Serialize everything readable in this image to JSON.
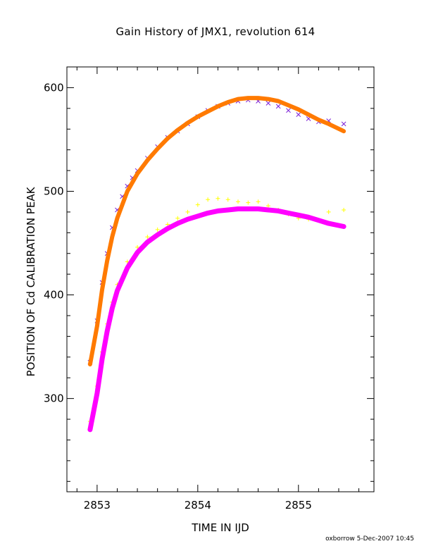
{
  "chart_data": {
    "type": "scatter",
    "title": "Gain History of JMX1, revolution 614",
    "xlabel": "TIME IN IJD",
    "ylabel": "POSITION OF Cd CALIBRATION PEAK",
    "xlim": [
      2852.7,
      2855.75
    ],
    "ylim": [
      210,
      620
    ],
    "xticks": [
      2853,
      2854,
      2855
    ],
    "yticks": [
      300,
      400,
      500,
      600
    ],
    "grid": false,
    "colors": {
      "upper_points": "#7b1fd6",
      "upper_fit": "#ff7a00",
      "lower_points": "#ffff00",
      "lower_fit": "#ff00ff"
    },
    "series": [
      {
        "marker": "x",
        "x": [
          2852.93,
          2853.0,
          2853.05,
          2853.1,
          2853.15,
          2853.2,
          2853.25,
          2853.3,
          2853.35,
          2853.4,
          2853.5,
          2853.6,
          2853.7,
          2853.8,
          2853.9,
          2854.0,
          2854.1,
          2854.2,
          2854.3,
          2854.4,
          2854.5,
          2854.6,
          2854.7,
          2854.8,
          2854.9,
          2855.0,
          2855.1,
          2855.2,
          2855.3,
          2855.45
        ],
        "y": [
          335,
          375,
          412,
          440,
          465,
          482,
          495,
          505,
          513,
          520,
          532,
          543,
          552,
          558,
          565,
          572,
          578,
          582,
          585,
          587,
          588,
          587,
          585,
          582,
          578,
          574,
          570,
          567,
          568,
          565
        ]
      },
      {
        "marker": "line",
        "x": [
          2852.93,
          2853.0,
          2853.05,
          2853.1,
          2853.15,
          2853.2,
          2853.3,
          2853.4,
          2853.5,
          2853.6,
          2853.7,
          2853.8,
          2853.9,
          2854.0,
          2854.1,
          2854.2,
          2854.3,
          2854.4,
          2854.5,
          2854.6,
          2854.7,
          2854.8,
          2854.9,
          2855.0,
          2855.1,
          2855.2,
          2855.3,
          2855.45
        ],
        "y": [
          333,
          370,
          405,
          433,
          456,
          474,
          500,
          517,
          530,
          541,
          551,
          559,
          566,
          572,
          577,
          582,
          586,
          589,
          590,
          590,
          589,
          587,
          583,
          579,
          574,
          569,
          565,
          558
        ]
      },
      {
        "marker": "+",
        "x": [
          2852.93,
          2853.0,
          2853.05,
          2853.1,
          2853.15,
          2853.2,
          2853.3,
          2853.4,
          2853.5,
          2853.6,
          2853.7,
          2853.8,
          2853.9,
          2854.0,
          2854.1,
          2854.2,
          2854.3,
          2854.4,
          2854.5,
          2854.6,
          2854.7,
          2854.8,
          2854.9,
          2855.0,
          2855.1,
          2855.2,
          2855.3,
          2855.45
        ],
        "y": [
          278,
          312,
          345,
          372,
          393,
          410,
          432,
          446,
          456,
          463,
          468,
          474,
          480,
          487,
          492,
          493,
          492,
          490,
          489,
          490,
          486,
          482,
          478,
          474,
          473,
          472,
          480,
          482
        ]
      },
      {
        "marker": "line",
        "x": [
          2852.93,
          2853.0,
          2853.05,
          2853.1,
          2853.15,
          2853.2,
          2853.3,
          2853.4,
          2853.5,
          2853.6,
          2853.7,
          2853.8,
          2853.9,
          2854.0,
          2854.1,
          2854.2,
          2854.3,
          2854.4,
          2854.5,
          2854.6,
          2854.7,
          2854.8,
          2854.9,
          2855.0,
          2855.1,
          2855.2,
          2855.3,
          2855.45
        ],
        "y": [
          270,
          305,
          338,
          365,
          387,
          404,
          426,
          441,
          451,
          458,
          464,
          469,
          473,
          476,
          479,
          481,
          482,
          483,
          483,
          483,
          482,
          481,
          479,
          477,
          475,
          472,
          469,
          466
        ]
      }
    ]
  },
  "footer": "oxborrow  5-Dec-2007 10:45"
}
